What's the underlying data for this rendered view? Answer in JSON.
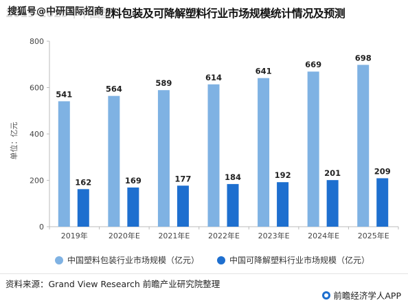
{
  "title": "2019-2025年中国塑料包装及可降解塑料行业市场规模统计情况及预测",
  "watermark_text": "搜狐号@中研国际招商",
  "source_text": "资料来源：Grand View Research 前瞻产业研究院整理",
  "brand_text": "前瞻经济学人APP",
  "colors": {
    "series1": "#7fb2e3",
    "series2": "#1e6fcf",
    "axis": "#bbbbbb",
    "grid": "#e5e5e5"
  },
  "chart_data": {
    "type": "bar",
    "title": "2019-2025年中国塑料包装及可降解塑料行业市场规模统计情况及预测",
    "xlabel": "",
    "ylabel": "单位：亿元",
    "ylim": [
      0,
      800
    ],
    "yticks": [
      0,
      200,
      400,
      600,
      800
    ],
    "grid": false,
    "legend_position": "bottom",
    "categories": [
      "2019年",
      "2020年E",
      "2021年E",
      "2022年E",
      "2023年E",
      "2024年E",
      "2025年E"
    ],
    "series": [
      {
        "name": "中国塑料包装行业市场规模（亿元）",
        "values": [
          541,
          564,
          589,
          614,
          641,
          669,
          698
        ]
      },
      {
        "name": "中国可降解塑料行业市场规模（亿元）",
        "values": [
          162,
          169,
          177,
          184,
          192,
          201,
          209
        ]
      }
    ]
  }
}
